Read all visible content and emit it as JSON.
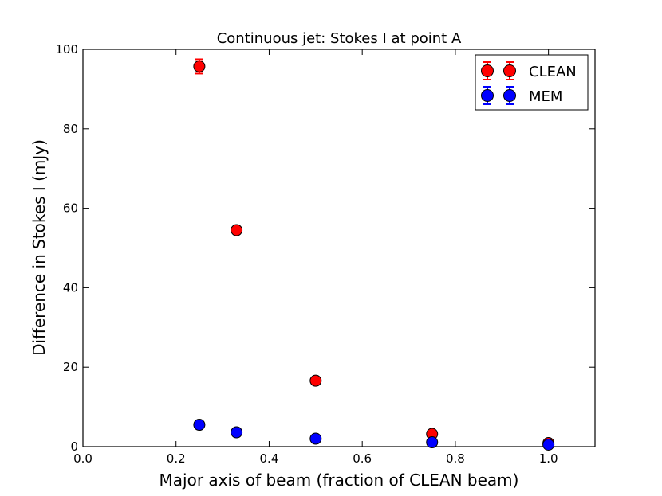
{
  "chart_data": {
    "type": "scatter",
    "title": "Continuous jet: Stokes I at point A",
    "xlabel": "Major axis of beam (fraction of CLEAN beam)",
    "ylabel": "Difference in Stokes I (mJy)",
    "xlim": [
      0.0,
      1.1
    ],
    "ylim": [
      0,
      100
    ],
    "xticks": [
      "0.0",
      "0.2",
      "0.4",
      "0.6",
      "0.8",
      "1.0"
    ],
    "yticks": [
      "0",
      "20",
      "40",
      "60",
      "80",
      "100"
    ],
    "grid": false,
    "legend_position": "top-right",
    "series": [
      {
        "name": "CLEAN",
        "color": "#ff0000",
        "errorbar_color": "#ff0000",
        "points": [
          {
            "x": 0.25,
            "y": 95.7,
            "err": 1.8
          },
          {
            "x": 0.33,
            "y": 54.5,
            "err": 0.6
          },
          {
            "x": 0.5,
            "y": 16.6,
            "err": 0.5
          },
          {
            "x": 0.75,
            "y": 3.2,
            "err": 0.4
          },
          {
            "x": 1.0,
            "y": 0.9,
            "err": 0.4
          }
        ]
      },
      {
        "name": "MEM",
        "color": "#0000ff",
        "errorbar_color": "#0000ff",
        "points": [
          {
            "x": 0.25,
            "y": 5.5,
            "err": 0.5
          },
          {
            "x": 0.33,
            "y": 3.6,
            "err": 0.4
          },
          {
            "x": 0.5,
            "y": 2.0,
            "err": 0.4
          },
          {
            "x": 0.75,
            "y": 1.1,
            "err": 0.3
          },
          {
            "x": 1.0,
            "y": 0.5,
            "err": 0.3
          }
        ]
      }
    ]
  }
}
